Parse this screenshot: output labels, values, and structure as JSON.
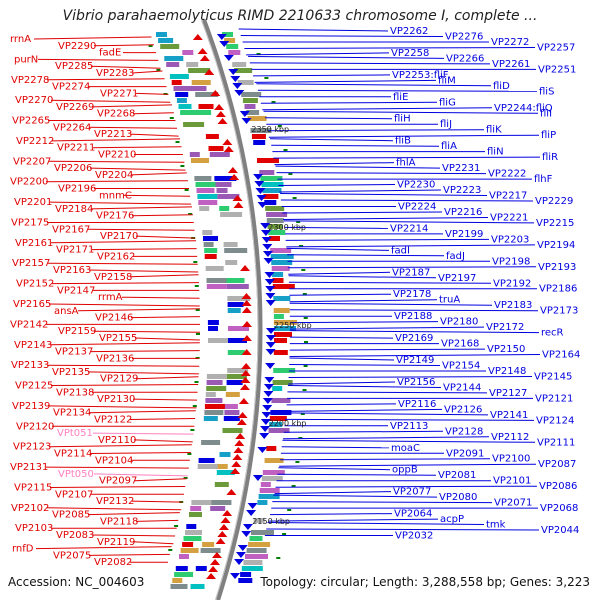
{
  "title": "Vibrio parahaemolyticus RIMD 2210633 chromosome I, complete ...",
  "footer": {
    "accession": "Accession: NC_004603",
    "summary": "Topology: circular; Length: 3,288,558 bp; Genes: 3,223"
  },
  "colors": {
    "left_label": "#e00000",
    "right_label": "#0000e0",
    "trna_label": "#ff80c0",
    "backbone": "#808080",
    "forward_arrow": "#e00000",
    "reverse_arrow": "#0000e0",
    "kbp_tick": "#008000"
  },
  "scale_labels": [
    "2350 kbp",
    "2300 kbp",
    "2250 kbp",
    "2200 kbp",
    "2150 kbp"
  ],
  "left_labels": [
    {
      "text": "rrnA"
    },
    {
      "text": "VP2290"
    },
    {
      "text": "fadE"
    },
    {
      "text": "purN"
    },
    {
      "text": "VP2285"
    },
    {
      "text": "VP2283"
    },
    {
      "text": "VP2278"
    },
    {
      "text": "VP2274"
    },
    {
      "text": "VP2271"
    },
    {
      "text": "VP2270"
    },
    {
      "text": "VP2269"
    },
    {
      "text": "VP2268"
    },
    {
      "text": "VP2265"
    },
    {
      "text": "VP2264"
    },
    {
      "text": "VP2213"
    },
    {
      "text": "VP2212"
    },
    {
      "text": "VP2211"
    },
    {
      "text": "VP2210"
    },
    {
      "text": "VP2207"
    },
    {
      "text": "VP2206"
    },
    {
      "text": "VP2204"
    },
    {
      "text": "VP2200"
    },
    {
      "text": "VP2196"
    },
    {
      "text": "mnmC"
    },
    {
      "text": "VP2201"
    },
    {
      "text": "VP2184"
    },
    {
      "text": "VP2176"
    },
    {
      "text": "VP2175"
    },
    {
      "text": "VP2167"
    },
    {
      "text": "VP2170"
    },
    {
      "text": "VP2161"
    },
    {
      "text": "VP2171"
    },
    {
      "text": "VP2162"
    },
    {
      "text": "VP2157"
    },
    {
      "text": "VP2163"
    },
    {
      "text": "VP2158"
    },
    {
      "text": "VP2152"
    },
    {
      "text": "VP2147"
    },
    {
      "text": "rrmA"
    },
    {
      "text": "VP2165"
    },
    {
      "text": "ansA"
    },
    {
      "text": "VP2146"
    },
    {
      "text": "VP2142"
    },
    {
      "text": "VP2159"
    },
    {
      "text": "VP2155"
    },
    {
      "text": "VP2143"
    },
    {
      "text": "VP2137"
    },
    {
      "text": "VP2136"
    },
    {
      "text": "VP2133"
    },
    {
      "text": "VP2135"
    },
    {
      "text": "VP2129"
    },
    {
      "text": "VP2125"
    },
    {
      "text": "VP2138"
    },
    {
      "text": "VP2130"
    },
    {
      "text": "VP2139"
    },
    {
      "text": "VP2134"
    },
    {
      "text": "VP2122"
    },
    {
      "text": "VP2120"
    },
    {
      "text": "VPt051"
    },
    {
      "text": "VP2110"
    },
    {
      "text": "VP2123"
    },
    {
      "text": "VP2114"
    },
    {
      "text": "VP2104"
    },
    {
      "text": "VP2131"
    },
    {
      "text": "VPt050"
    },
    {
      "text": "VP2097"
    },
    {
      "text": "VP2115"
    },
    {
      "text": "VP2107"
    },
    {
      "text": "VP2132"
    },
    {
      "text": "VP2102"
    },
    {
      "text": "VP2085"
    },
    {
      "text": "VP2118"
    },
    {
      "text": "VP2103"
    },
    {
      "text": "VP2083"
    },
    {
      "text": "VP2119"
    },
    {
      "text": "rnfD"
    },
    {
      "text": "VP2075"
    },
    {
      "text": "VP2082"
    }
  ],
  "right_labels": [
    {
      "text": "VP2262"
    },
    {
      "text": "VP2276"
    },
    {
      "text": "VP2272"
    },
    {
      "text": "VP2257"
    },
    {
      "text": "VP2258"
    },
    {
      "text": "VP2266"
    },
    {
      "text": "VP2261"
    },
    {
      "text": "VP2251"
    },
    {
      "text": "VP2253:fliF"
    },
    {
      "text": "fliM"
    },
    {
      "text": "fliD"
    },
    {
      "text": "fliS"
    },
    {
      "text": "fliE"
    },
    {
      "text": "fliG"
    },
    {
      "text": "VP2244:fliQ"
    },
    {
      "text": "fliI"
    },
    {
      "text": "fliH"
    },
    {
      "text": "fliJ"
    },
    {
      "text": "fliK"
    },
    {
      "text": "fliP"
    },
    {
      "text": "fliB"
    },
    {
      "text": "fliA"
    },
    {
      "text": "fliN"
    },
    {
      "text": "fliR"
    },
    {
      "text": "fhlA"
    },
    {
      "text": "VP2231"
    },
    {
      "text": "VP2222"
    },
    {
      "text": "flhF"
    },
    {
      "text": "VP2230"
    },
    {
      "text": "VP2223"
    },
    {
      "text": "VP2217"
    },
    {
      "text": "VP2229"
    },
    {
      "text": "VP2224"
    },
    {
      "text": "VP2216"
    },
    {
      "text": "VP2221"
    },
    {
      "text": "VP2215"
    },
    {
      "text": "VP2214"
    },
    {
      "text": "VP2199"
    },
    {
      "text": "VP2203"
    },
    {
      "text": "VP2194"
    },
    {
      "text": "fadI"
    },
    {
      "text": "fadJ"
    },
    {
      "text": "VP2198"
    },
    {
      "text": "VP2193"
    },
    {
      "text": "VP2187"
    },
    {
      "text": "VP2197"
    },
    {
      "text": "VP2192"
    },
    {
      "text": "VP2186"
    },
    {
      "text": "VP2178"
    },
    {
      "text": "truA"
    },
    {
      "text": "VP2183"
    },
    {
      "text": "VP2173"
    },
    {
      "text": "VP2188"
    },
    {
      "text": "VP2180"
    },
    {
      "text": "VP2172"
    },
    {
      "text": "recR"
    },
    {
      "text": "VP2169"
    },
    {
      "text": "VP2168"
    },
    {
      "text": "VP2150"
    },
    {
      "text": "VP2164"
    },
    {
      "text": "VP2149"
    },
    {
      "text": "VP2154"
    },
    {
      "text": "VP2148"
    },
    {
      "text": "VP2145"
    },
    {
      "text": "VP2156"
    },
    {
      "text": "VP2144"
    },
    {
      "text": "VP2127"
    },
    {
      "text": "VP2121"
    },
    {
      "text": "VP2116"
    },
    {
      "text": "VP2126"
    },
    {
      "text": "VP2141"
    },
    {
      "text": "VP2124"
    },
    {
      "text": "VP2113"
    },
    {
      "text": "VP2128"
    },
    {
      "text": "VP2112"
    },
    {
      "text": "VP2111"
    },
    {
      "text": "moaC"
    },
    {
      "text": "VP2091"
    },
    {
      "text": "VP2100"
    },
    {
      "text": "VP2087"
    },
    {
      "text": "oppB"
    },
    {
      "text": "VP2081"
    },
    {
      "text": "VP2101"
    },
    {
      "text": "VP2086"
    },
    {
      "text": "VP2077"
    },
    {
      "text": "VP2080"
    },
    {
      "text": "VP2071"
    },
    {
      "text": "VP2068"
    },
    {
      "text": "VP2064"
    },
    {
      "text": "acpP"
    },
    {
      "text": "tmk"
    },
    {
      "text": "VP2044"
    },
    {
      "text": "VP2032"
    }
  ]
}
